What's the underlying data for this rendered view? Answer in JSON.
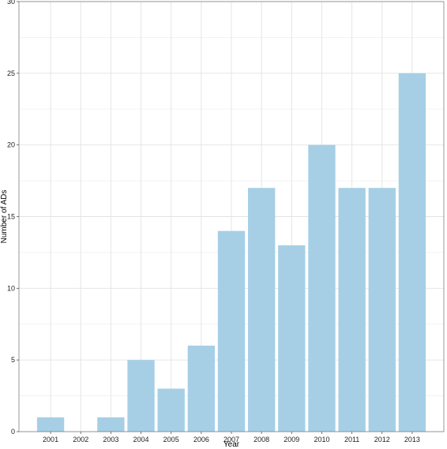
{
  "chart_data": {
    "type": "bar",
    "title": "",
    "xlabel": "Year",
    "ylabel": "Number of ADs",
    "categories": [
      "2001",
      "2002",
      "2003",
      "2004",
      "2005",
      "2006",
      "2007",
      "2008",
      "2009",
      "2010",
      "2011",
      "2012",
      "2013"
    ],
    "values": [
      1,
      0,
      1,
      5,
      3,
      6,
      14,
      17,
      13,
      20,
      17,
      17,
      25
    ],
    "ylim": [
      0,
      30
    ],
    "yticks": [
      0,
      5,
      10,
      15,
      20,
      25,
      30
    ],
    "grid": true,
    "legend": "none",
    "colors": {
      "bar": "#a6cfe5",
      "grid": "#e3e3e3",
      "border": "#7f7f7f",
      "background": "#ffffff"
    }
  }
}
